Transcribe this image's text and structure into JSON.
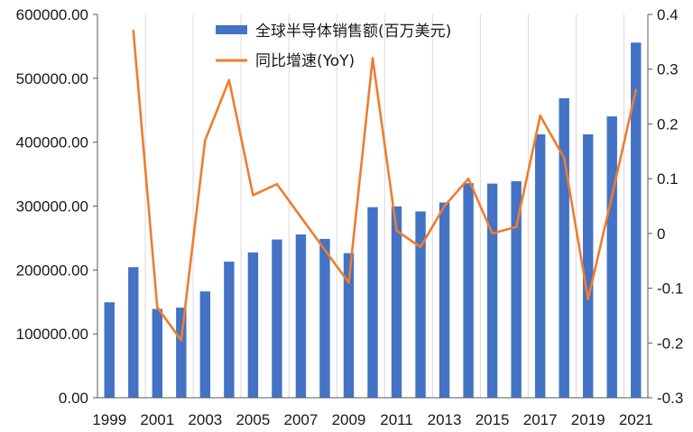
{
  "chart_data": {
    "type": "bar+line",
    "categories": [
      "1999",
      "2000",
      "2001",
      "2002",
      "2003",
      "2004",
      "2005",
      "2006",
      "2007",
      "2008",
      "2009",
      "2010",
      "2011",
      "2012",
      "2013",
      "2014",
      "2015",
      "2016",
      "2017",
      "2018",
      "2019",
      "2020",
      "2021"
    ],
    "x_tick_labels": [
      "1999",
      "2001",
      "2003",
      "2005",
      "2007",
      "2009",
      "2011",
      "2013",
      "2015",
      "2017",
      "2019",
      "2021"
    ],
    "series": [
      {
        "name": "全球半导体销售额(百万美元)",
        "type": "bar",
        "axis": "left",
        "color": "#4472C4",
        "values": [
          149400,
          204400,
          139000,
          141000,
          166400,
          213000,
          227500,
          247700,
          255600,
          248600,
          226300,
          298300,
          299500,
          291600,
          305600,
          335800,
          335200,
          338900,
          412200,
          468800,
          412300,
          440400,
          555900
        ]
      },
      {
        "name": "同比增速(YoY)",
        "type": "line",
        "axis": "right",
        "color": "#ED7D31",
        "values": [
          null,
          0.37,
          -0.135,
          -0.195,
          0.17,
          0.28,
          0.07,
          0.09,
          0.03,
          -0.03,
          -0.09,
          0.32,
          0.005,
          -0.025,
          0.05,
          0.1,
          0.0,
          0.012,
          0.215,
          0.138,
          -0.12,
          0.068,
          0.262
        ]
      }
    ],
    "y_left": {
      "min": 0,
      "max": 600000,
      "step": 100000,
      "tick_labels": [
        "0.00",
        "100000.00",
        "200000.00",
        "300000.00",
        "400000.00",
        "500000.00",
        "600000.00"
      ]
    },
    "y_right": {
      "min": -0.3,
      "max": 0.4,
      "step": 0.1,
      "tick_labels": [
        "-0.3",
        "-0.2",
        "-0.1",
        "0",
        "0.1",
        "0.2",
        "0.3",
        "0.4"
      ]
    },
    "grid": "vertical",
    "legend": "top-center",
    "title": ""
  }
}
